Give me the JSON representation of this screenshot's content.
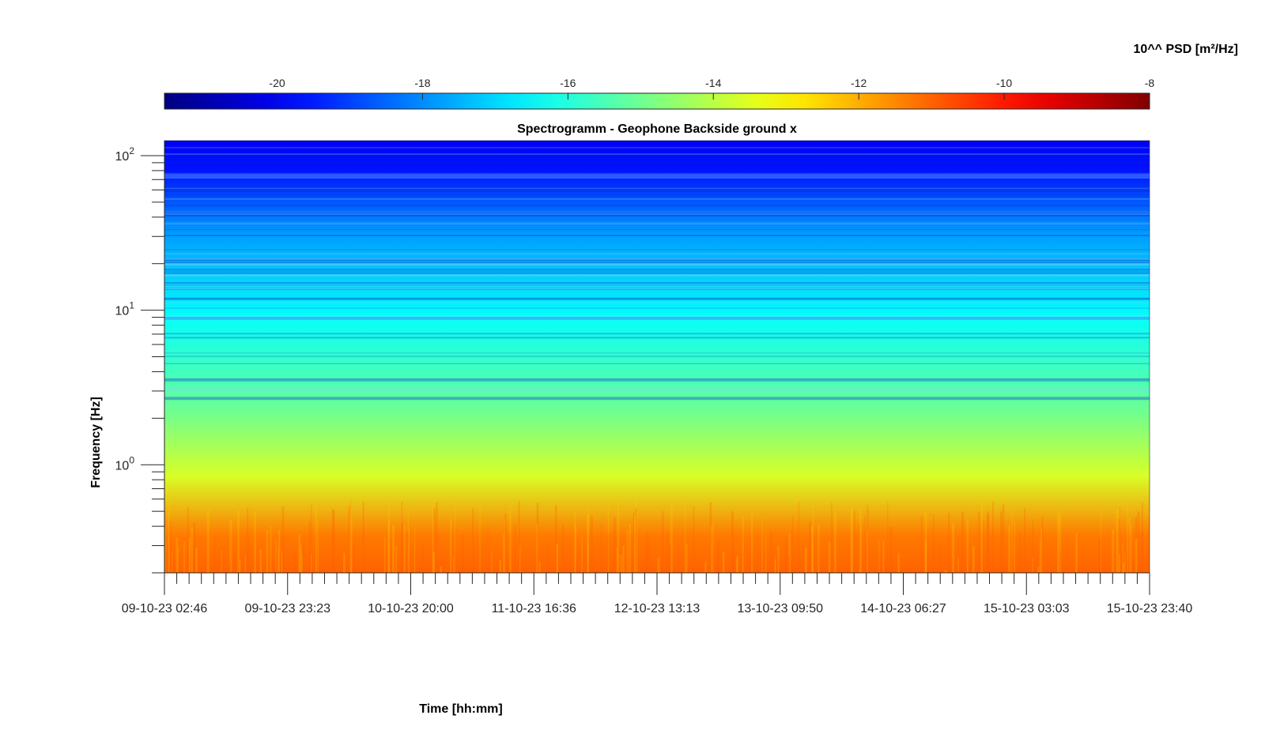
{
  "chart_data": {
    "type": "heatmap",
    "title": "Spectrogramm - Geophone Backside ground x",
    "xlabel": "Time [hh:mm]",
    "ylabel": "Frequency [Hz]",
    "y_scale": "log",
    "ylim": [
      0.2,
      125
    ],
    "y_ticks": [
      {
        "value": 1,
        "base": "10",
        "exp": "0"
      },
      {
        "value": 10,
        "base": "10",
        "exp": "1"
      },
      {
        "value": 100,
        "base": "10",
        "exp": "2"
      }
    ],
    "x_ticks": [
      "09-10-23 02:46",
      "09-10-23 23:23",
      "10-10-23 20:00",
      "11-10-23 16:36",
      "12-10-23 13:13",
      "13-10-23 09:50",
      "14-10-23 06:27",
      "15-10-23 03:03",
      "15-10-23 23:40"
    ],
    "colorbar": {
      "label": "10^^ PSD [m²/Hz]",
      "location": "top",
      "colormap": "jet",
      "range": [
        -21.55,
        -8
      ],
      "ticks": [
        -20,
        -18,
        -16,
        -14,
        -12,
        -10,
        -8
      ],
      "tick_labels": [
        "-20",
        "-18",
        "-16",
        "-14",
        "-12",
        "-10",
        "-8"
      ]
    },
    "bands": [
      {
        "freq_range": [
          0.2,
          0.6
        ],
        "log10_psd": -11.3
      },
      {
        "freq_range": [
          0.6,
          1.2
        ],
        "log10_psd": -13.6
      },
      {
        "freq_range": [
          1.2,
          4
        ],
        "log10_psd": -15.0
      },
      {
        "freq_range": [
          4,
          20
        ],
        "log10_psd": -16.4
      },
      {
        "freq_range": [
          20,
          50
        ],
        "log10_psd": -17.8
      },
      {
        "freq_range": [
          50,
          125
        ],
        "log10_psd": -19.6
      }
    ]
  }
}
